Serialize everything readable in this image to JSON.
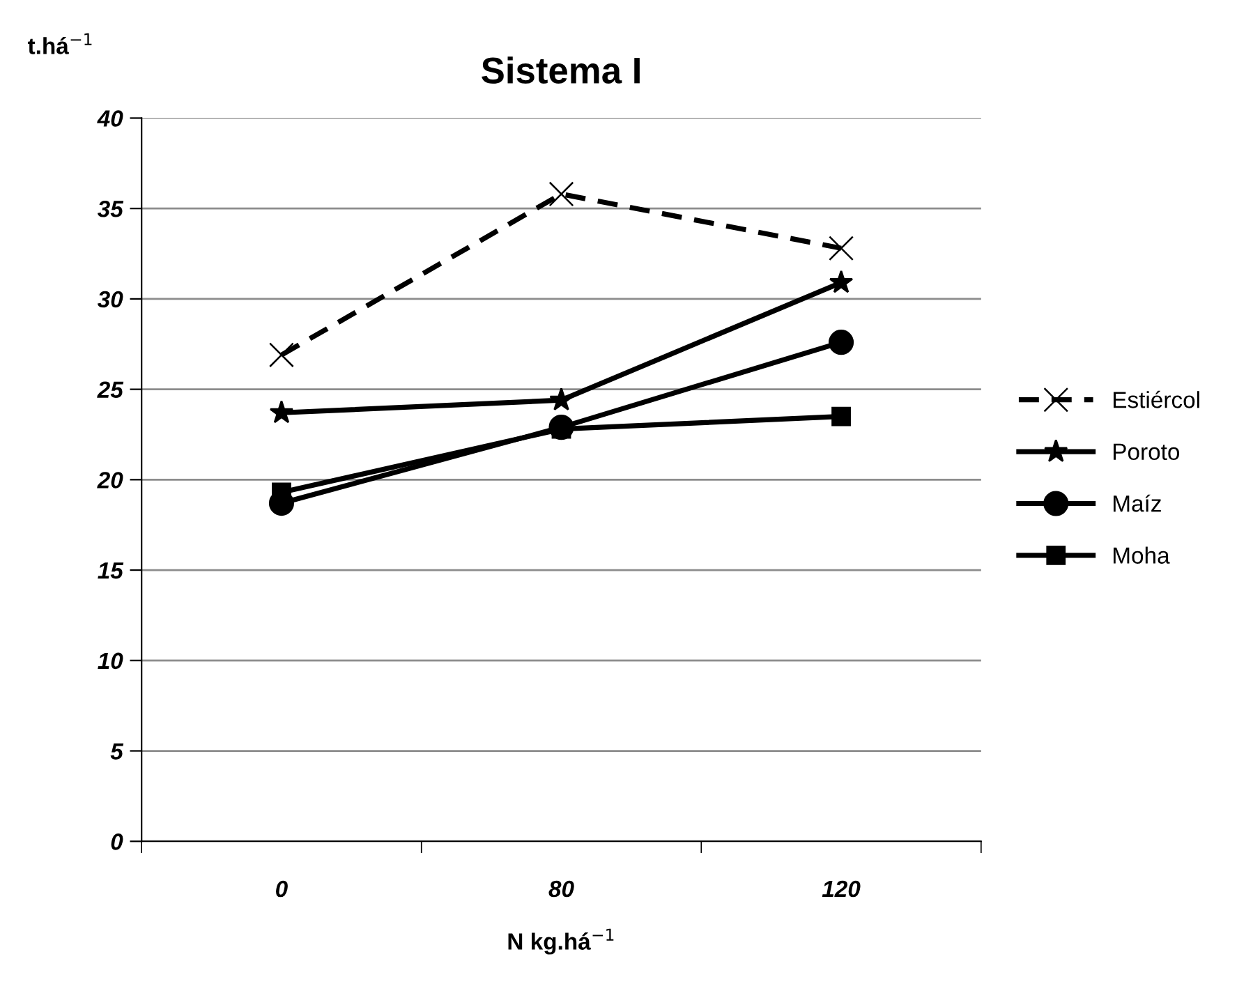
{
  "chart_data": {
    "type": "line",
    "title": "Sistema I",
    "xlabel": "N kg.há$^{−1}$",
    "ylabel": "t.há$^{−1}$",
    "categories": [
      "0",
      "80",
      "120"
    ],
    "series": [
      {
        "name": "Estiércol",
        "color": "#000000",
        "values": [
          26.9,
          35.8,
          32.8
        ],
        "marker": "cross",
        "line_style": "dashed"
      },
      {
        "name": "Poroto",
        "color": "#000000",
        "values": [
          23.7,
          24.4,
          30.9
        ],
        "marker": "star",
        "line_style": "solid"
      },
      {
        "name": "Maíz",
        "color": "#000000",
        "values": [
          18.7,
          22.9,
          27.6
        ],
        "marker": "circle",
        "line_style": "solid"
      },
      {
        "name": "Moha",
        "color": "#000000",
        "values": [
          19.3,
          22.8,
          23.5
        ],
        "marker": "square",
        "line_style": "solid"
      }
    ],
    "ylim": [
      0,
      40
    ],
    "yticks": [
      0,
      5,
      10,
      15,
      20,
      25,
      30,
      35,
      40
    ],
    "grid": "y",
    "legend": "right"
  }
}
